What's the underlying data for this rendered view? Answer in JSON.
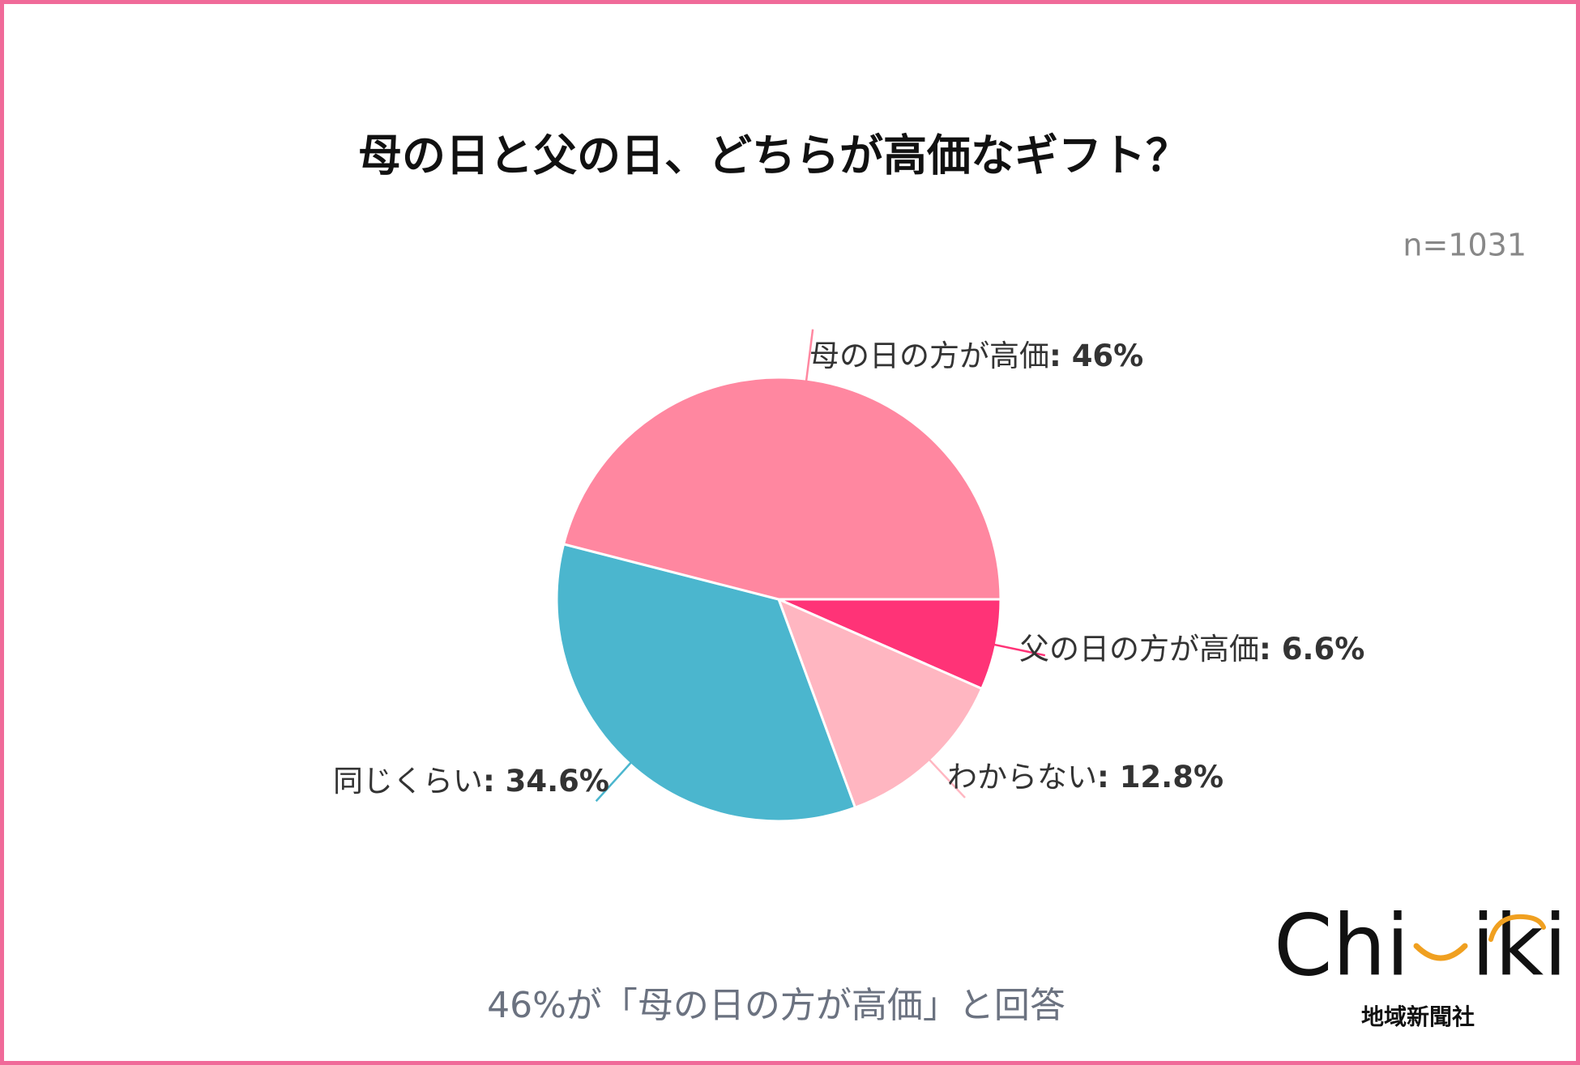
{
  "chart_data": {
    "type": "pie",
    "title": "母の日と父の日、どちらが高価なギフト？",
    "note": "n=1031",
    "caption": "46%が「母の日の方が高価」と回答",
    "categories": [
      "父の日の方が高価",
      "わからない",
      "同じくらい",
      "母の日の方が高価"
    ],
    "values": [
      6.6,
      12.8,
      34.6,
      46
    ],
    "value_labels": [
      "6.6%",
      "12.8%",
      "34.6%",
      "46%"
    ],
    "label_separator": ": ",
    "colors": [
      "#ff3377",
      "#ffb6c1",
      "#4bb6ce",
      "#ff87a0"
    ]
  },
  "logo": {
    "wordmark_left": "Chi",
    "wordmark_right": "iki",
    "company": "地域新聞社"
  }
}
